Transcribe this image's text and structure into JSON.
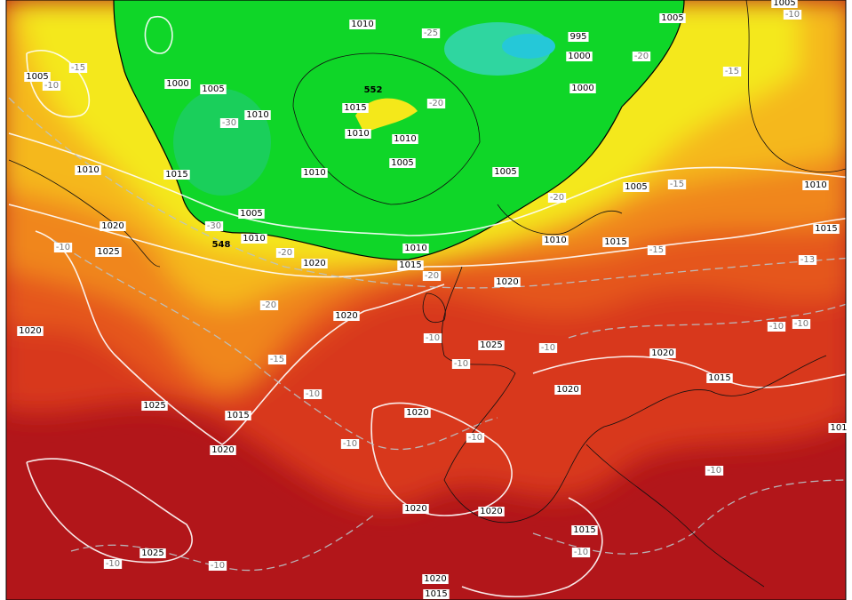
{
  "map": {
    "isobar_labels": [
      "1010",
      "1005",
      "995",
      "1000",
      "1000",
      "1005",
      "1000",
      "1005",
      "1015",
      "1010",
      "1010",
      "1010",
      "1005",
      "1005",
      "1010",
      "1015",
      "1010",
      "1005",
      "1010",
      "1005",
      "1020",
      "1010",
      "1010",
      "1010",
      "1015",
      "1015",
      "1025",
      "1020",
      "1015",
      "1020",
      "1020",
      "1020",
      "1025",
      "1020",
      "1015",
      "1020",
      "1025",
      "1020",
      "1015",
      "1020",
      "1020",
      "1020",
      "1015",
      "1025",
      "1020",
      "1015",
      "1005",
      "101"
    ],
    "temperature_labels": [
      "-25",
      "-20",
      "-15",
      "-10",
      "-30",
      "-20",
      "-20",
      "-15",
      "-15",
      "-30",
      "-20",
      "-15",
      "-13",
      "-20",
      "-10",
      "-10",
      "-10",
      "-10",
      "-15",
      "-10",
      "-10",
      "-10",
      "-10",
      "-10",
      "-10",
      "-10",
      "-10",
      "-10",
      "-10",
      "-20",
      "552",
      "548"
    ]
  }
}
